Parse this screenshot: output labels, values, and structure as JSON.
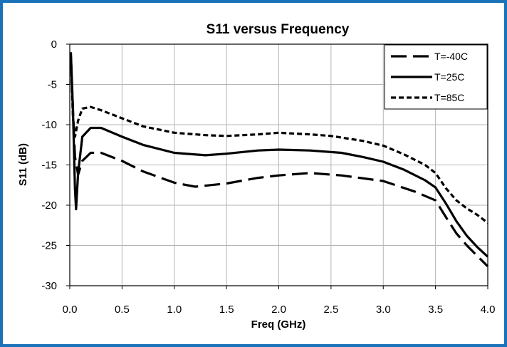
{
  "chart_data": {
    "type": "line",
    "title": "S11 versus Frequency",
    "xlabel": "Freq (GHz)",
    "ylabel": "S11 (dB)",
    "xlim": [
      0.0,
      4.0
    ],
    "ylim": [
      -30,
      0
    ],
    "xticks": [
      "0.0",
      "0.5",
      "1.0",
      "1.5",
      "2.0",
      "2.5",
      "3.0",
      "3.5",
      "4.0"
    ],
    "yticks": [
      "0",
      "-5",
      "-10",
      "-15",
      "-20",
      "-25",
      "-30"
    ],
    "grid": true,
    "legend_position": "top-right",
    "series": [
      {
        "name": "T=-40C",
        "style": "long-dash",
        "x": [
          0.01,
          0.03,
          0.05,
          0.08,
          0.12,
          0.2,
          0.3,
          0.5,
          0.7,
          1.0,
          1.2,
          1.5,
          1.8,
          2.0,
          2.3,
          2.6,
          3.0,
          3.3,
          3.5,
          3.6,
          3.7,
          3.8,
          3.9,
          4.0
        ],
        "y": [
          -1.5,
          -8,
          -14,
          -16.2,
          -14.5,
          -13.5,
          -13.5,
          -14.5,
          -15.8,
          -17.2,
          -17.7,
          -17.3,
          -16.6,
          -16.3,
          -16.0,
          -16.3,
          -17.0,
          -18.3,
          -19.4,
          -21.5,
          -23.5,
          -25.0,
          -26.3,
          -27.6
        ]
      },
      {
        "name": "T=25C",
        "style": "solid",
        "x": [
          0.01,
          0.03,
          0.05,
          0.06,
          0.08,
          0.12,
          0.2,
          0.3,
          0.5,
          0.7,
          1.0,
          1.3,
          1.5,
          1.8,
          2.0,
          2.3,
          2.6,
          2.8,
          3.0,
          3.2,
          3.4,
          3.5,
          3.6,
          3.7,
          3.8,
          3.9,
          4.0
        ],
        "y": [
          -1,
          -8,
          -18,
          -20.5,
          -16,
          -11.5,
          -10.4,
          -10.4,
          -11.5,
          -12.5,
          -13.5,
          -13.8,
          -13.6,
          -13.2,
          -13.1,
          -13.2,
          -13.5,
          -14.0,
          -14.6,
          -15.6,
          -16.9,
          -17.8,
          -19.8,
          -22.0,
          -23.8,
          -25.2,
          -26.4
        ]
      },
      {
        "name": "T=85C",
        "style": "short-dash",
        "x": [
          0.01,
          0.03,
          0.05,
          0.08,
          0.12,
          0.2,
          0.3,
          0.5,
          0.7,
          1.0,
          1.3,
          1.5,
          1.8,
          2.0,
          2.3,
          2.5,
          2.8,
          3.0,
          3.2,
          3.4,
          3.5,
          3.6,
          3.7,
          3.8,
          3.9,
          4.0
        ],
        "y": [
          -1.5,
          -9,
          -11.5,
          -9.5,
          -8,
          -7.8,
          -8.2,
          -9.2,
          -10.2,
          -11.0,
          -11.3,
          -11.4,
          -11.2,
          -11.0,
          -11.2,
          -11.4,
          -12.0,
          -12.6,
          -13.7,
          -15.0,
          -16.0,
          -17.9,
          -19.4,
          -20.4,
          -21.2,
          -22.2
        ]
      }
    ]
  }
}
